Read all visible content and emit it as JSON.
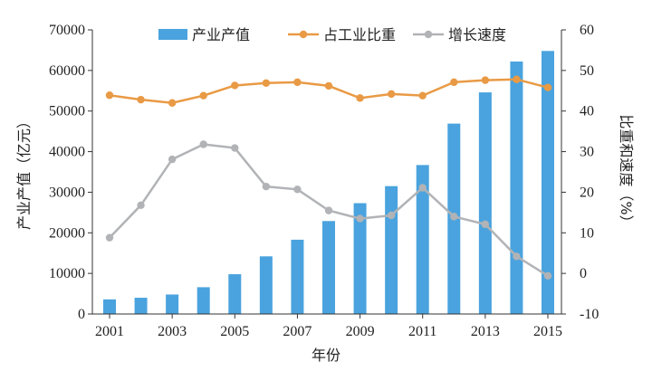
{
  "chart_data": {
    "type": "bar+line",
    "xlabel": "年份",
    "ylabel_left": "产业产值（亿元）",
    "ylabel_right": "比重和速度（%）",
    "ylim_left": [
      0,
      70000
    ],
    "ylim_right": [
      -10,
      60
    ],
    "yticks_left": [
      0,
      10000,
      20000,
      30000,
      40000,
      50000,
      60000,
      70000
    ],
    "yticks_right": [
      -10,
      0,
      10,
      20,
      30,
      40,
      50,
      60
    ],
    "x_tick_labels": [
      "2001",
      "2003",
      "2005",
      "2007",
      "2009",
      "2011",
      "2013",
      "2015"
    ],
    "years": [
      2001,
      2002,
      2003,
      2004,
      2005,
      2006,
      2007,
      2008,
      2009,
      2010,
      2011,
      2012,
      2013,
      2014,
      2015
    ],
    "series": [
      {
        "name": "产业产值",
        "kind": "bar",
        "axis": "left",
        "color": "#4aa3de",
        "values": [
          3600,
          4000,
          4800,
          6600,
          9800,
          14200,
          18300,
          22900,
          27300,
          31500,
          36700,
          46900,
          54600,
          62200,
          64800
        ]
      },
      {
        "name": "占工业比重",
        "kind": "line",
        "axis": "right",
        "color": "#e99a45",
        "values": [
          43.9,
          42.8,
          42.0,
          43.8,
          46.3,
          46.9,
          47.1,
          46.2,
          43.2,
          44.2,
          43.8,
          47.1,
          47.6,
          47.8,
          45.8
        ]
      },
      {
        "name": "增长速度",
        "kind": "line",
        "axis": "right",
        "color": "#b1b3b6",
        "values": [
          8.8,
          16.8,
          28.1,
          31.8,
          30.9,
          21.4,
          20.7,
          15.5,
          13.5,
          14.3,
          21.1,
          14.0,
          12.1,
          4.2,
          -0.6
        ]
      }
    ]
  }
}
